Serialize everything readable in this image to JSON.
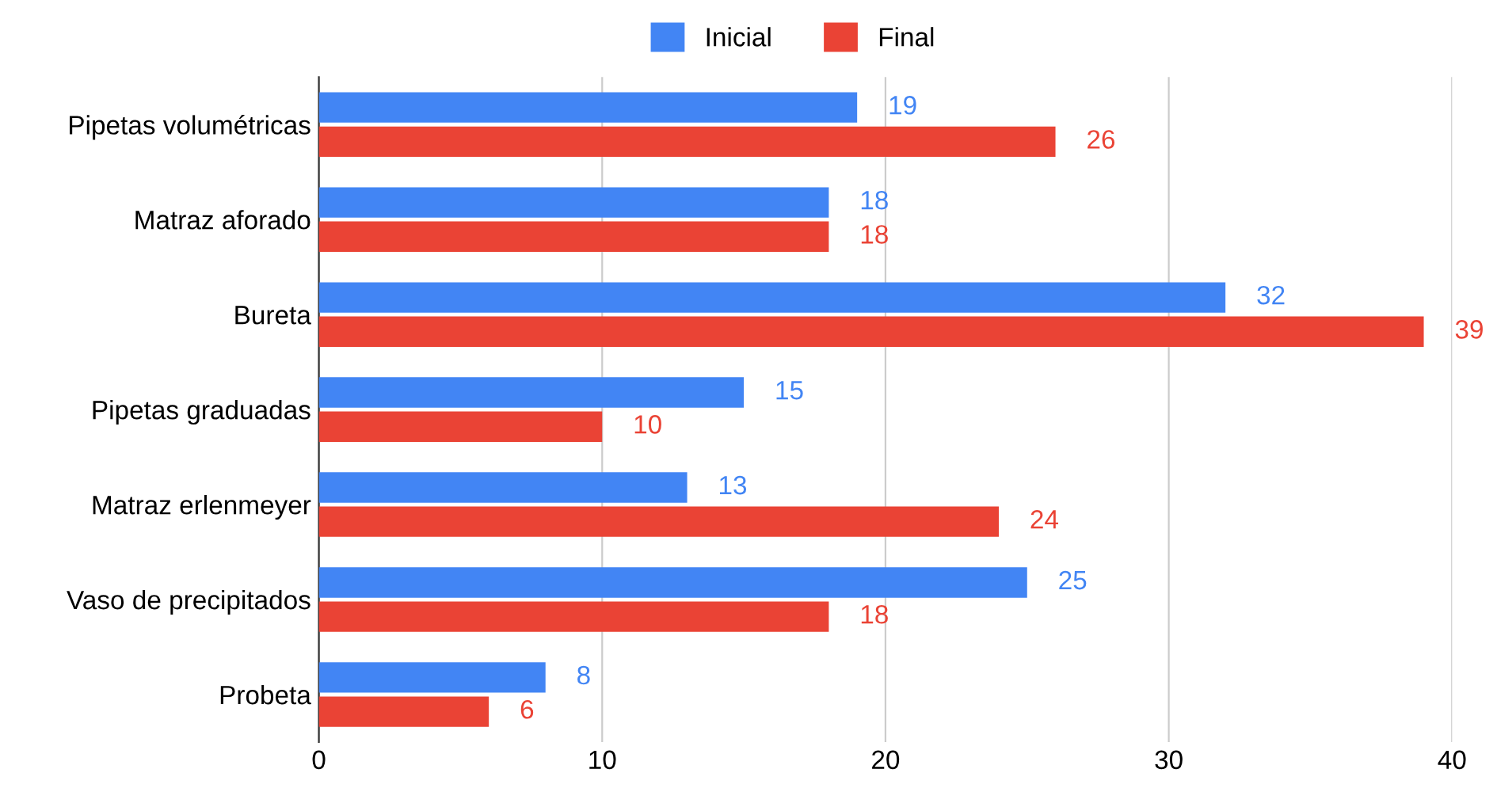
{
  "chart_data": {
    "type": "bar",
    "orientation": "horizontal",
    "categories": [
      "Pipetas volumétricas",
      "Matraz aforado",
      "Bureta",
      "Pipetas graduadas",
      "Matraz erlenmeyer",
      "Vaso de precipitados",
      "Probeta"
    ],
    "series": [
      {
        "name": "Inicial",
        "color": "#4285f4",
        "values": [
          19,
          18,
          32,
          15,
          13,
          25,
          8
        ]
      },
      {
        "name": "Final",
        "color": "#ea4335",
        "values": [
          26,
          18,
          39,
          10,
          24,
          18,
          6
        ]
      }
    ],
    "xlim": [
      0,
      40
    ],
    "xticks": [
      0,
      10,
      20,
      30,
      40
    ],
    "grid": "x",
    "legend": "top",
    "data_labels": true
  }
}
